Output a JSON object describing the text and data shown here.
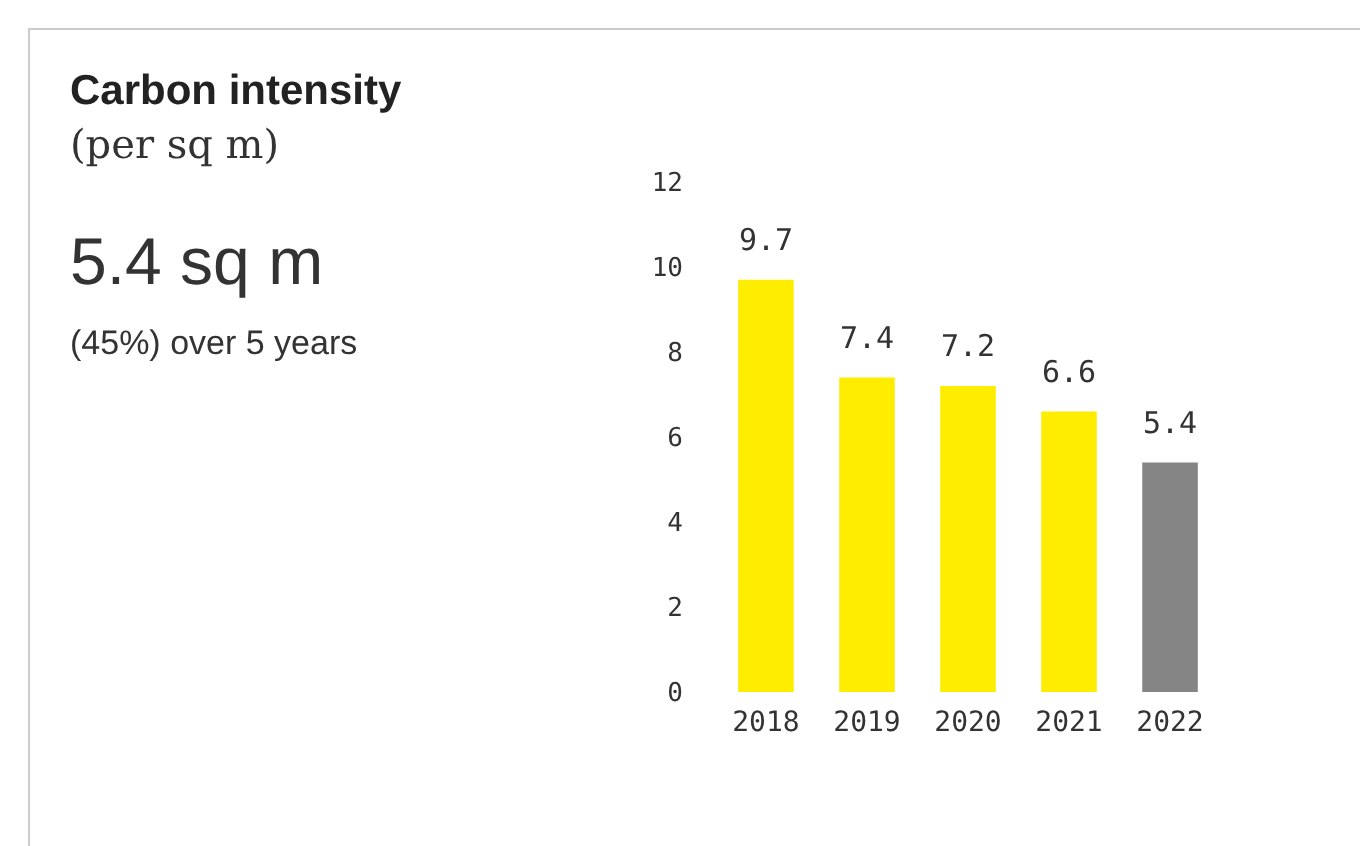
{
  "chart_data": {
    "type": "bar",
    "title": "Carbon intensity",
    "subtitle": "(per sq m)",
    "annotations": [
      "5.4 sq m",
      "(45%) over 5 years"
    ],
    "categories": [
      "2018",
      "2019",
      "2020",
      "2021",
      "2022"
    ],
    "values": [
      9.7,
      7.4,
      7.2,
      6.6,
      5.4
    ],
    "colors": [
      "#ffed00",
      "#ffed00",
      "#ffed00",
      "#ffed00",
      "#858585"
    ],
    "ylim": [
      0,
      12
    ],
    "yticks": [
      0,
      2,
      4,
      6,
      8,
      10,
      12
    ],
    "data_labels": true,
    "grid": false
  }
}
